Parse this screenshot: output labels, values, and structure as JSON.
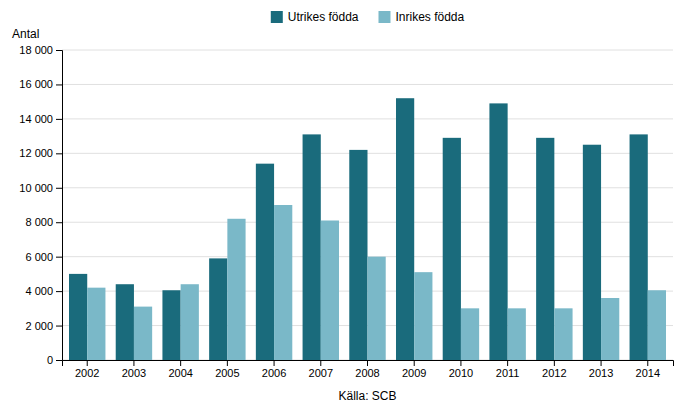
{
  "chart_data": {
    "type": "bar",
    "categories": [
      "2002",
      "2003",
      "2004",
      "2005",
      "2006",
      "2007",
      "2008",
      "2009",
      "2010",
      "2011",
      "2012",
      "2013",
      "2014"
    ],
    "series": [
      {
        "name": "Utrikes födda",
        "color": "#1a6b7c",
        "values": [
          5000,
          4400,
          4050,
          5900,
          11400,
          13100,
          12200,
          15200,
          12900,
          14900,
          12900,
          12500,
          13100
        ]
      },
      {
        "name": "Inrikes födda",
        "color": "#7ab8c8",
        "values": [
          4200,
          3100,
          4400,
          8200,
          9000,
          8100,
          6000,
          5100,
          3000,
          3000,
          3000,
          3600,
          4050
        ]
      }
    ],
    "ylabel": "Antal",
    "xlabel": "Källa: SCB",
    "ylim": [
      0,
      18000
    ],
    "yticks": [
      0,
      {
        "value": 2000,
        "label": "2 000"
      },
      {
        "value": 4000,
        "label": "4 000"
      },
      {
        "value": 6000,
        "label": "6 000"
      },
      {
        "value": 8000,
        "label": "8 000"
      },
      {
        "value": 10000,
        "label": "10 000"
      },
      {
        "value": 12000,
        "label": "12 000"
      },
      {
        "value": 14000,
        "label": "14 000"
      },
      {
        "value": 16000,
        "label": "16 000"
      },
      {
        "value": 18000,
        "label": "18 000"
      }
    ],
    "grid": true,
    "legend": "top"
  }
}
